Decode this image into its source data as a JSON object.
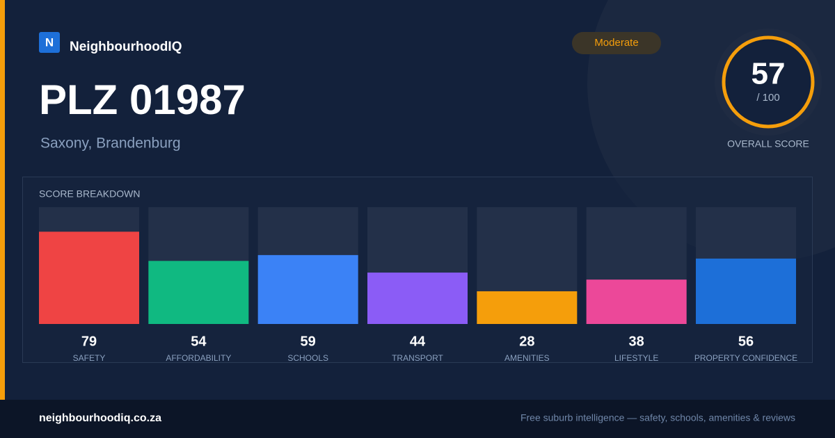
{
  "brand": {
    "logo": "N",
    "name": "NeighbourhoodIQ"
  },
  "badge": "Moderate",
  "title": "PLZ 01987",
  "subtitle": "Saxony, Brandenburg",
  "score": {
    "value": 57,
    "max_label": "/ 100",
    "caption": "OVERALL SCORE"
  },
  "chart_data": {
    "type": "bar",
    "title": "SCORE BREAKDOWN",
    "categories": [
      "SAFETY",
      "AFFORDABILITY",
      "SCHOOLS",
      "TRANSPORT",
      "AMENITIES",
      "LIFESTYLE",
      "PROPERTY CONFIDENCE"
    ],
    "values": [
      79,
      54,
      59,
      44,
      28,
      38,
      56
    ],
    "colors": [
      "#ef4444",
      "#10b981",
      "#3b82f6",
      "#8b5cf6",
      "#f59e0b",
      "#ec4899",
      "#1d6fd8"
    ],
    "ylim": [
      0,
      100
    ]
  },
  "footer": {
    "url": "neighbourhoodiq.co.za",
    "tagline": "Free suburb intelligence — safety, schools, amenities & reviews"
  }
}
